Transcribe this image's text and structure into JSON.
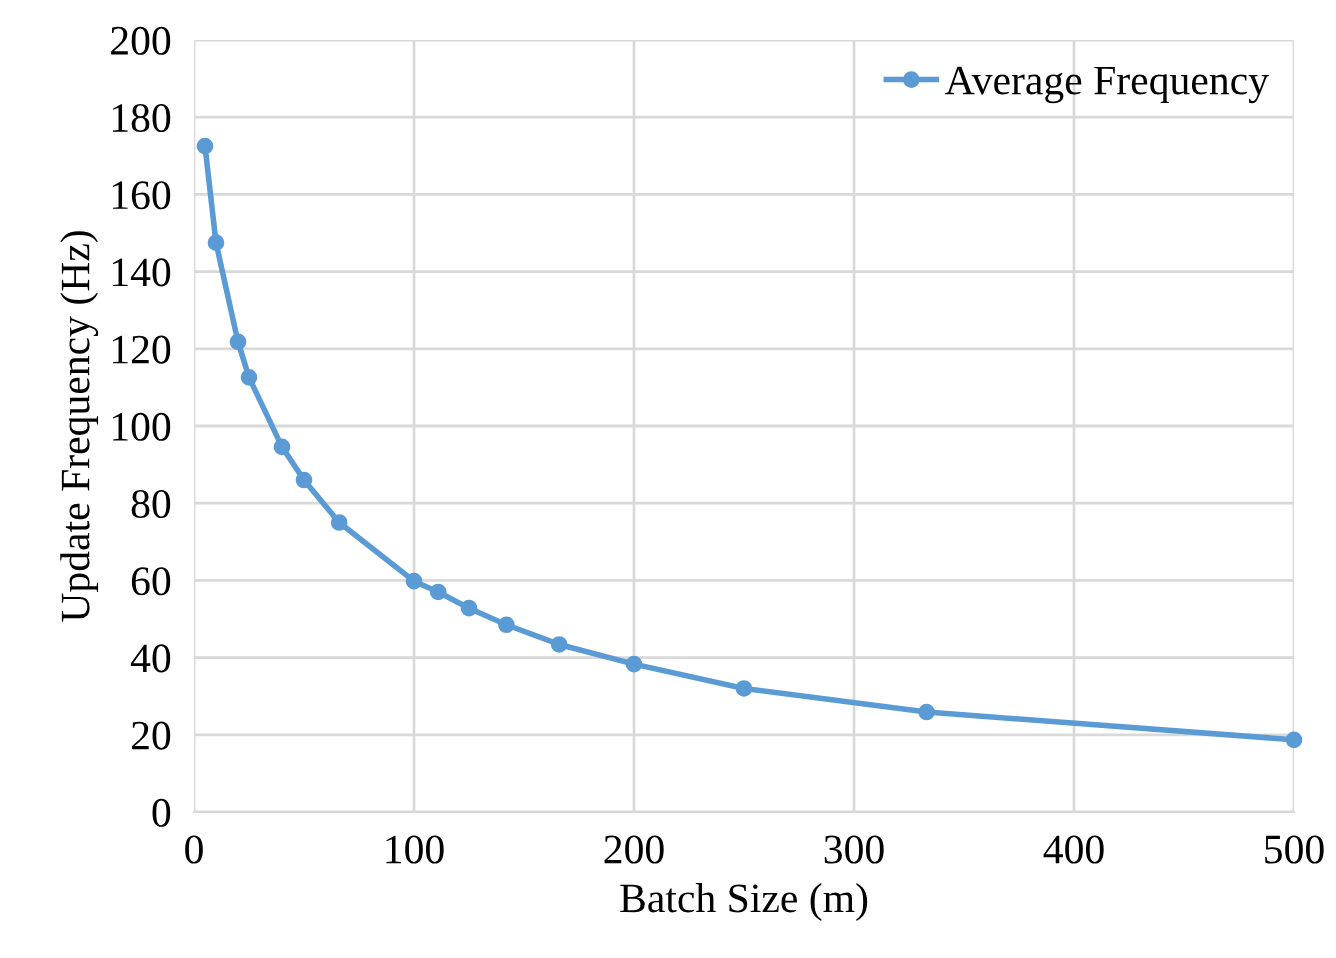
{
  "chart_data": {
    "type": "line",
    "xlabel": "Batch Size (m)",
    "ylabel": "Update Frequency (Hz)",
    "x": [
      5,
      10,
      20,
      25,
      40,
      50,
      66,
      100,
      111,
      125,
      142,
      166,
      200,
      250,
      333,
      500
    ],
    "series": [
      {
        "name": "Average Frequency",
        "color": "#5b9bd5",
        "values": [
          172.5,
          147.5,
          121.8,
          112.6,
          94.6,
          86,
          75,
          59.8,
          57,
          52.8,
          48.5,
          43.4,
          38.3,
          32,
          25.9,
          18.7
        ]
      }
    ],
    "xlim": [
      0,
      500
    ],
    "xticks": [
      0,
      100,
      200,
      300,
      400,
      500
    ],
    "ylim": [
      0,
      200
    ],
    "yticks": [
      0,
      20,
      40,
      60,
      80,
      100,
      120,
      140,
      160,
      180,
      200
    ],
    "grid": true,
    "legend": "top right",
    "marker": "circle",
    "line_style": "solid"
  }
}
